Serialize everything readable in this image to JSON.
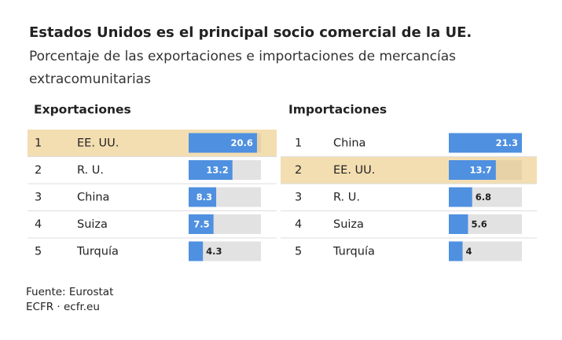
{
  "title": "Estados Unidos es el principal socio comercial de la UE.",
  "subtitle_lines": [
    "Porcentaje de las exportaciones e importaciones de mercancías",
    "extracomunitarias"
  ],
  "chart_data": [
    {
      "type": "bar",
      "heading": "Exportaciones",
      "ranks": [
        "1",
        "2",
        "3",
        "4",
        "5"
      ],
      "categories": [
        "EE. UU.",
        "R. U.",
        "China",
        "Suiza",
        "Turquía"
      ],
      "values": [
        20.6,
        13.2,
        8.3,
        7.5,
        4.3
      ],
      "xlim": [
        0,
        21.8
      ],
      "color": "#4f90e0",
      "highlight": 0
    },
    {
      "type": "bar",
      "heading": "Importaciones",
      "ranks": [
        "1",
        "2",
        "3",
        "4",
        "5"
      ],
      "categories": [
        "China",
        "EE. UU.",
        "R. U.",
        "Suiza",
        "Turquía"
      ],
      "values": [
        21.3,
        13.7,
        6.8,
        5.6,
        4
      ],
      "xlim": [
        0,
        21.3
      ],
      "color": "#4f90e0",
      "highlight": 1
    }
  ],
  "source": "Fuente: Eurostat",
  "credit": "ECFR · ecfr.eu"
}
